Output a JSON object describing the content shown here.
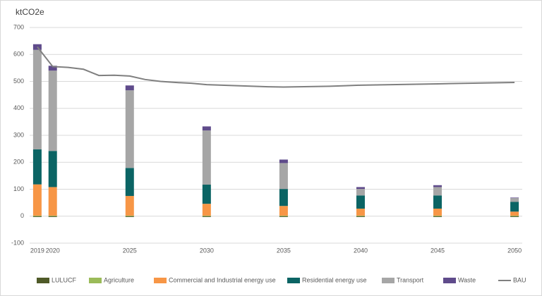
{
  "chart_data": {
    "type": "bar",
    "title": "ktCO2e",
    "x": [
      2019,
      2020,
      2025,
      2030,
      2035,
      2040,
      2045,
      2050
    ],
    "xlim": [
      2018.5,
      2050.5
    ],
    "xticks": [
      2019,
      2020,
      2025,
      2030,
      2035,
      2040,
      2045,
      2050
    ],
    "ylim": [
      -100,
      700
    ],
    "yticks": [
      -100,
      0,
      100,
      200,
      300,
      400,
      500,
      600,
      700
    ],
    "grid": true,
    "series": [
      {
        "name": "LULUCF",
        "color": "#4f5a28",
        "values": [
          -3,
          -3,
          -3,
          -3,
          -3,
          -3,
          -3,
          -3
        ]
      },
      {
        "name": "Agriculture",
        "color": "#9bbb59",
        "values": [
          2,
          2,
          2,
          2,
          2,
          2,
          2,
          2
        ]
      },
      {
        "name": "Commercial and Industrial energy use",
        "color": "#f79646",
        "values": [
          116,
          106,
          73,
          44,
          36,
          26,
          26,
          15
        ]
      },
      {
        "name": "Residential energy use",
        "color": "#0b6464",
        "values": [
          130,
          134,
          104,
          71,
          63,
          49,
          49,
          36
        ]
      },
      {
        "name": "Transport",
        "color": "#a6a6a6",
        "values": [
          369,
          298,
          288,
          201,
          96,
          24,
          31,
          14
        ]
      },
      {
        "name": "Waste",
        "color": "#5f4b8b",
        "values": [
          21,
          18,
          18,
          15,
          13,
          7,
          7,
          2
        ]
      },
      {
        "name": "BAU",
        "type": "line",
        "color": "#7f7f7f",
        "x": [
          2019,
          2020,
          2021,
          2022,
          2023,
          2024,
          2025,
          2026,
          2027,
          2028,
          2029,
          2030,
          2031,
          2032,
          2033,
          2034,
          2035,
          2036,
          2037,
          2038,
          2039,
          2040,
          2041,
          2042,
          2043,
          2044,
          2045,
          2046,
          2047,
          2048,
          2049,
          2050
        ],
        "values": [
          628,
          555,
          552,
          545,
          522,
          523,
          520,
          507,
          500,
          496,
          493,
          488,
          486,
          484,
          482,
          480,
          479,
          480,
          481,
          482,
          484,
          486,
          487,
          488,
          489,
          490,
          491,
          492,
          493,
          494,
          495,
          496
        ]
      }
    ]
  }
}
